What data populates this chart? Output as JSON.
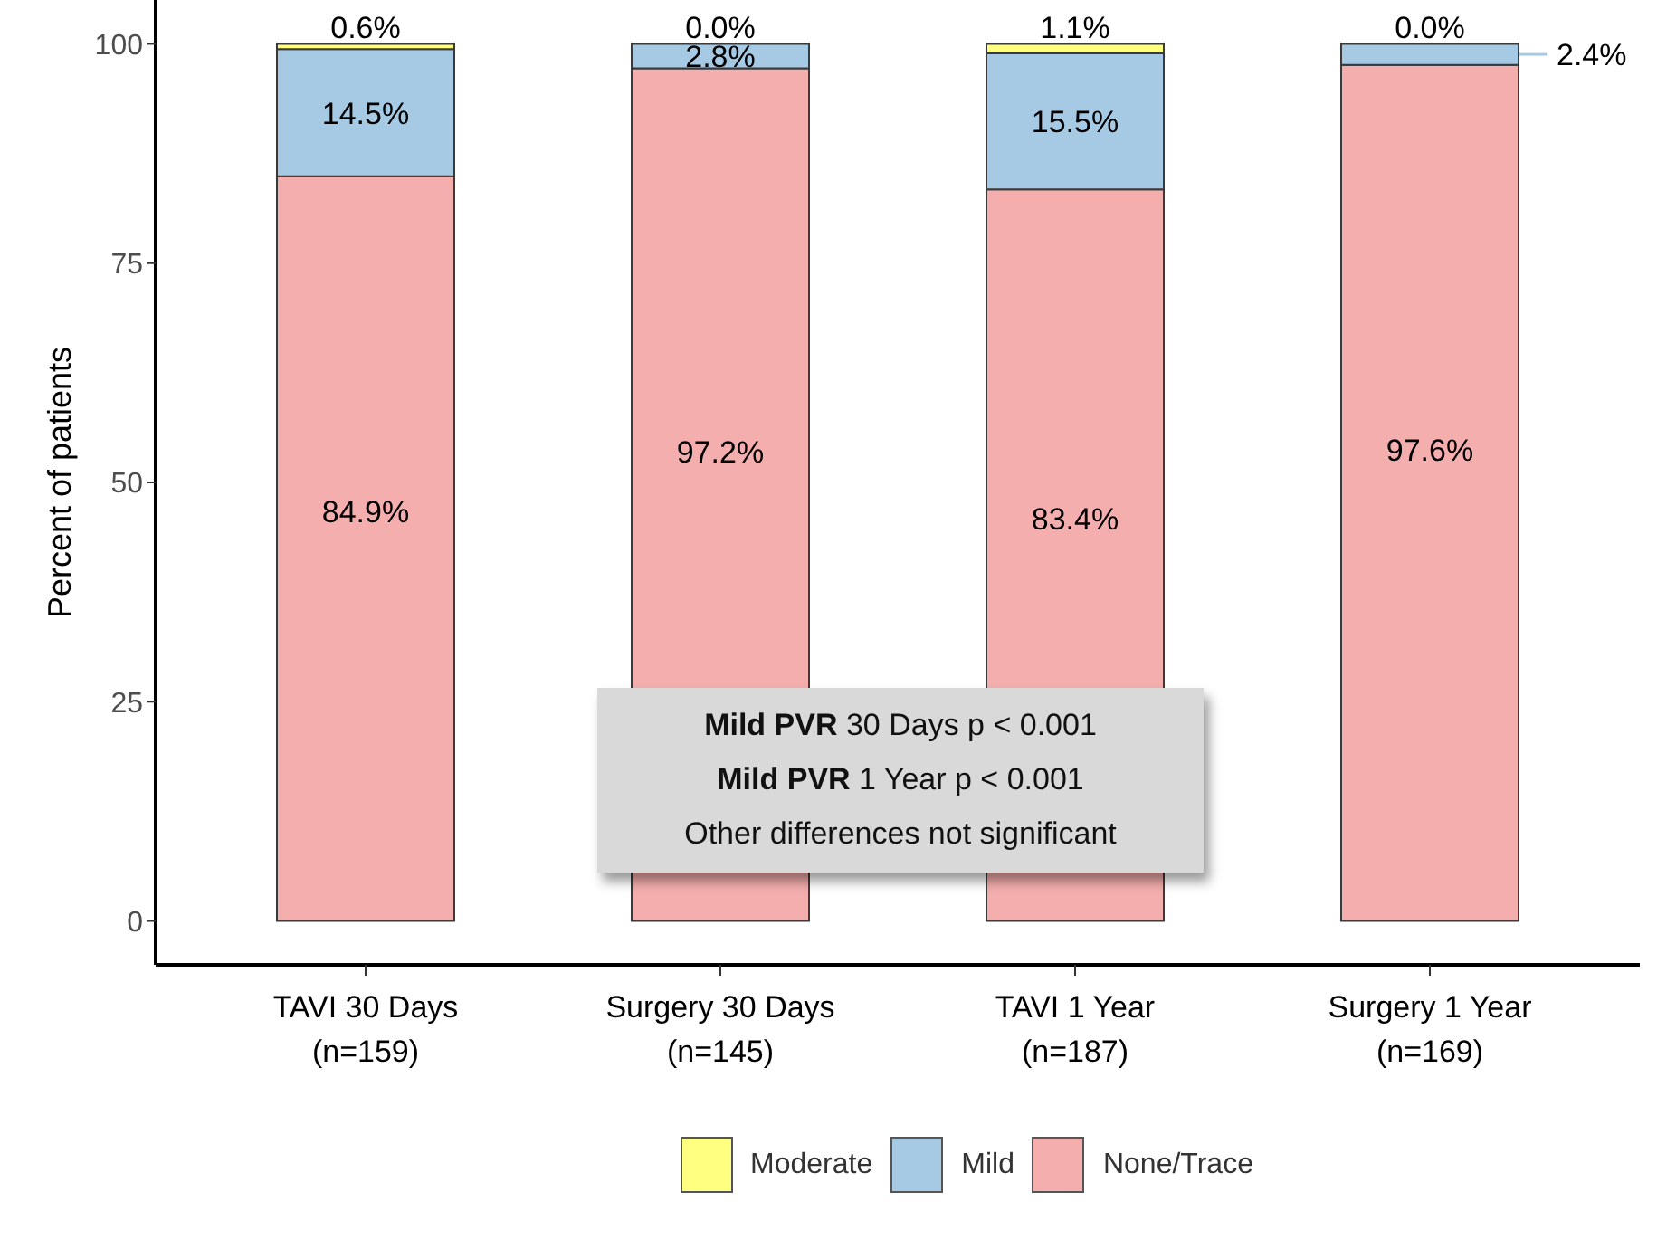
{
  "chart_data": {
    "type": "bar",
    "stacked": true,
    "ylabel": "Percent of patients",
    "categories": [
      "TAVI 30 Days\n(n=159)",
      "Surgery 30 Days\n(n=145)",
      "TAVI 1 Year\n(n=187)",
      "Surgery 1 Year\n(n=169)"
    ],
    "series": [
      {
        "name": "None/Trace",
        "color": "#f5aeae",
        "values": [
          84.9,
          97.2,
          83.4,
          97.6
        ],
        "value_labels": [
          "84.9%",
          "97.2%",
          "83.4%",
          "97.6%"
        ]
      },
      {
        "name": "Mild",
        "color": "#a6c9e4",
        "values": [
          14.5,
          2.8,
          15.5,
          2.4
        ],
        "value_labels": [
          "14.5%",
          "2.8%",
          "15.5%",
          "2.4%"
        ]
      },
      {
        "name": "Moderate",
        "color": "#ffff80",
        "values": [
          0.6,
          0.0,
          1.1,
          0.0
        ],
        "value_labels": [
          "0.6%",
          "0.0%",
          "1.1%",
          "0.0%"
        ]
      }
    ],
    "ylim": [
      -5,
      105
    ],
    "yticks": [
      0,
      25,
      50,
      75,
      100
    ],
    "legend": "bottom",
    "annotations": [
      "Mild PVR 30 Days p < 0.001",
      "Mild PVR 1 Year p < 0.001",
      "Other differences not significant"
    ]
  }
}
